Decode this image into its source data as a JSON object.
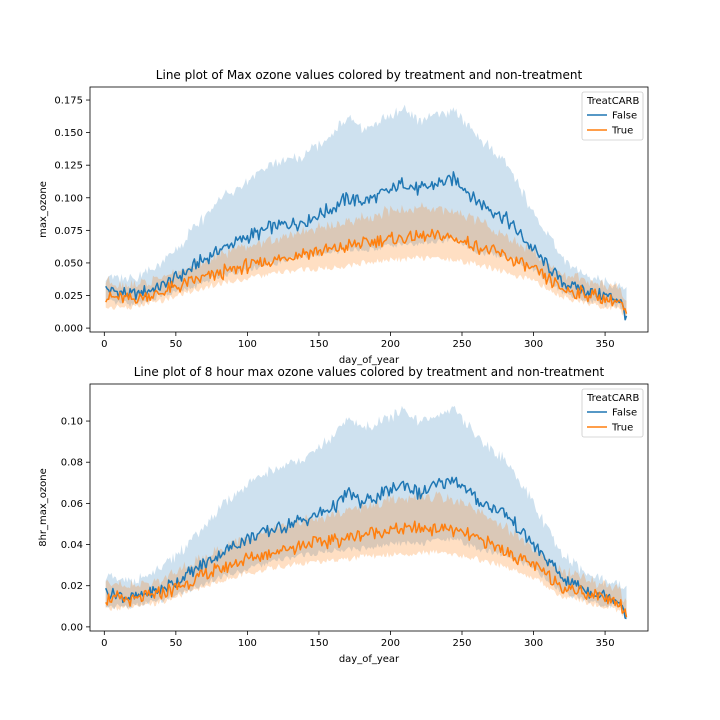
{
  "chart_data": [
    {
      "type": "line",
      "title": "Line plot of Max ozone values colored by treatment and non-treatment",
      "xlabel": "day_of_year",
      "ylabel": "max_ozone",
      "xlim": [
        -10,
        380
      ],
      "ylim": [
        -0.003,
        0.185
      ],
      "xticks": [
        "0",
        "50",
        "100",
        "150",
        "200",
        "250",
        "300",
        "350"
      ],
      "yticks": [
        "0.000",
        "0.025",
        "0.050",
        "0.075",
        "0.100",
        "0.125",
        "0.150",
        "0.175"
      ],
      "legend": {
        "title": "TreatCARB",
        "placement": "top-right"
      },
      "series": [
        {
          "name": "False",
          "color": "#1f77b4",
          "x": [
            1,
            20,
            40,
            60,
            80,
            100,
            120,
            140,
            160,
            170,
            180,
            200,
            210,
            220,
            230,
            245,
            260,
            280,
            300,
            320,
            340,
            360,
            365
          ],
          "values": [
            0.03,
            0.025,
            0.032,
            0.045,
            0.06,
            0.07,
            0.078,
            0.082,
            0.092,
            0.1,
            0.097,
            0.105,
            0.112,
            0.105,
            0.11,
            0.115,
            0.098,
            0.085,
            0.06,
            0.035,
            0.028,
            0.022,
            0.01
          ],
          "band_low": [
            0.02,
            0.018,
            0.025,
            0.03,
            0.04,
            0.045,
            0.05,
            0.055,
            0.058,
            0.06,
            0.06,
            0.063,
            0.065,
            0.064,
            0.066,
            0.068,
            0.058,
            0.055,
            0.045,
            0.028,
            0.02,
            0.017,
            0.008
          ],
          "band_high": [
            0.035,
            0.035,
            0.045,
            0.07,
            0.095,
            0.11,
            0.125,
            0.13,
            0.145,
            0.16,
            0.15,
            0.16,
            0.165,
            0.155,
            0.16,
            0.165,
            0.145,
            0.125,
            0.085,
            0.05,
            0.035,
            0.03,
            0.025
          ]
        },
        {
          "name": "True",
          "color": "#ff7f0e",
          "x": [
            1,
            20,
            40,
            60,
            80,
            100,
            120,
            140,
            160,
            180,
            200,
            220,
            240,
            260,
            280,
            300,
            320,
            340,
            360,
            365
          ],
          "values": [
            0.024,
            0.022,
            0.027,
            0.035,
            0.042,
            0.048,
            0.052,
            0.058,
            0.06,
            0.065,
            0.068,
            0.07,
            0.07,
            0.063,
            0.055,
            0.045,
            0.03,
            0.025,
            0.02,
            0.01
          ],
          "band_low": [
            0.016,
            0.016,
            0.021,
            0.028,
            0.034,
            0.038,
            0.042,
            0.045,
            0.046,
            0.05,
            0.052,
            0.054,
            0.053,
            0.049,
            0.043,
            0.036,
            0.024,
            0.018,
            0.014,
            0.007
          ],
          "band_high": [
            0.032,
            0.03,
            0.035,
            0.044,
            0.053,
            0.06,
            0.065,
            0.072,
            0.076,
            0.082,
            0.087,
            0.09,
            0.088,
            0.08,
            0.069,
            0.056,
            0.038,
            0.033,
            0.028,
            0.015
          ]
        }
      ]
    },
    {
      "type": "line",
      "title": "Line plot of 8 hour max ozone values colored by treatment and non-treatment",
      "xlabel": "day_of_year",
      "ylabel": "8hr_max_ozone",
      "xlim": [
        -10,
        380
      ],
      "ylim": [
        -0.002,
        0.118
      ],
      "xticks": [
        "0",
        "50",
        "100",
        "150",
        "200",
        "250",
        "300",
        "350"
      ],
      "yticks": [
        "0.00",
        "0.02",
        "0.04",
        "0.06",
        "0.08",
        "0.10"
      ],
      "legend": {
        "title": "TreatCARB",
        "placement": "top-right"
      },
      "series": [
        {
          "name": "False",
          "color": "#1f77b4",
          "x": [
            1,
            20,
            40,
            60,
            80,
            100,
            120,
            140,
            160,
            170,
            180,
            200,
            210,
            220,
            230,
            245,
            260,
            280,
            300,
            320,
            340,
            360,
            365
          ],
          "values": [
            0.017,
            0.014,
            0.018,
            0.026,
            0.035,
            0.043,
            0.048,
            0.052,
            0.058,
            0.065,
            0.06,
            0.066,
            0.07,
            0.064,
            0.068,
            0.072,
            0.062,
            0.055,
            0.04,
            0.024,
            0.017,
            0.013,
            0.006
          ],
          "band_low": [
            0.01,
            0.01,
            0.013,
            0.018,
            0.024,
            0.028,
            0.032,
            0.035,
            0.037,
            0.038,
            0.038,
            0.04,
            0.041,
            0.04,
            0.042,
            0.043,
            0.038,
            0.035,
            0.028,
            0.017,
            0.012,
            0.009,
            0.004
          ],
          "band_high": [
            0.022,
            0.02,
            0.026,
            0.04,
            0.055,
            0.067,
            0.075,
            0.08,
            0.09,
            0.1,
            0.095,
            0.1,
            0.104,
            0.097,
            0.1,
            0.105,
            0.09,
            0.08,
            0.058,
            0.033,
            0.023,
            0.019,
            0.015
          ]
        },
        {
          "name": "True",
          "color": "#ff7f0e",
          "x": [
            1,
            20,
            40,
            60,
            80,
            100,
            120,
            140,
            160,
            180,
            200,
            220,
            240,
            260,
            280,
            300,
            320,
            340,
            360,
            365
          ],
          "values": [
            0.014,
            0.013,
            0.016,
            0.022,
            0.028,
            0.033,
            0.037,
            0.04,
            0.042,
            0.045,
            0.047,
            0.048,
            0.048,
            0.043,
            0.037,
            0.03,
            0.02,
            0.016,
            0.012,
            0.006
          ],
          "band_low": [
            0.009,
            0.009,
            0.012,
            0.017,
            0.022,
            0.026,
            0.029,
            0.031,
            0.032,
            0.034,
            0.035,
            0.036,
            0.036,
            0.033,
            0.029,
            0.024,
            0.015,
            0.011,
            0.008,
            0.004
          ],
          "band_high": [
            0.02,
            0.018,
            0.021,
            0.028,
            0.035,
            0.041,
            0.046,
            0.05,
            0.053,
            0.057,
            0.06,
            0.062,
            0.061,
            0.055,
            0.047,
            0.037,
            0.025,
            0.021,
            0.017,
            0.009
          ]
        }
      ]
    }
  ]
}
